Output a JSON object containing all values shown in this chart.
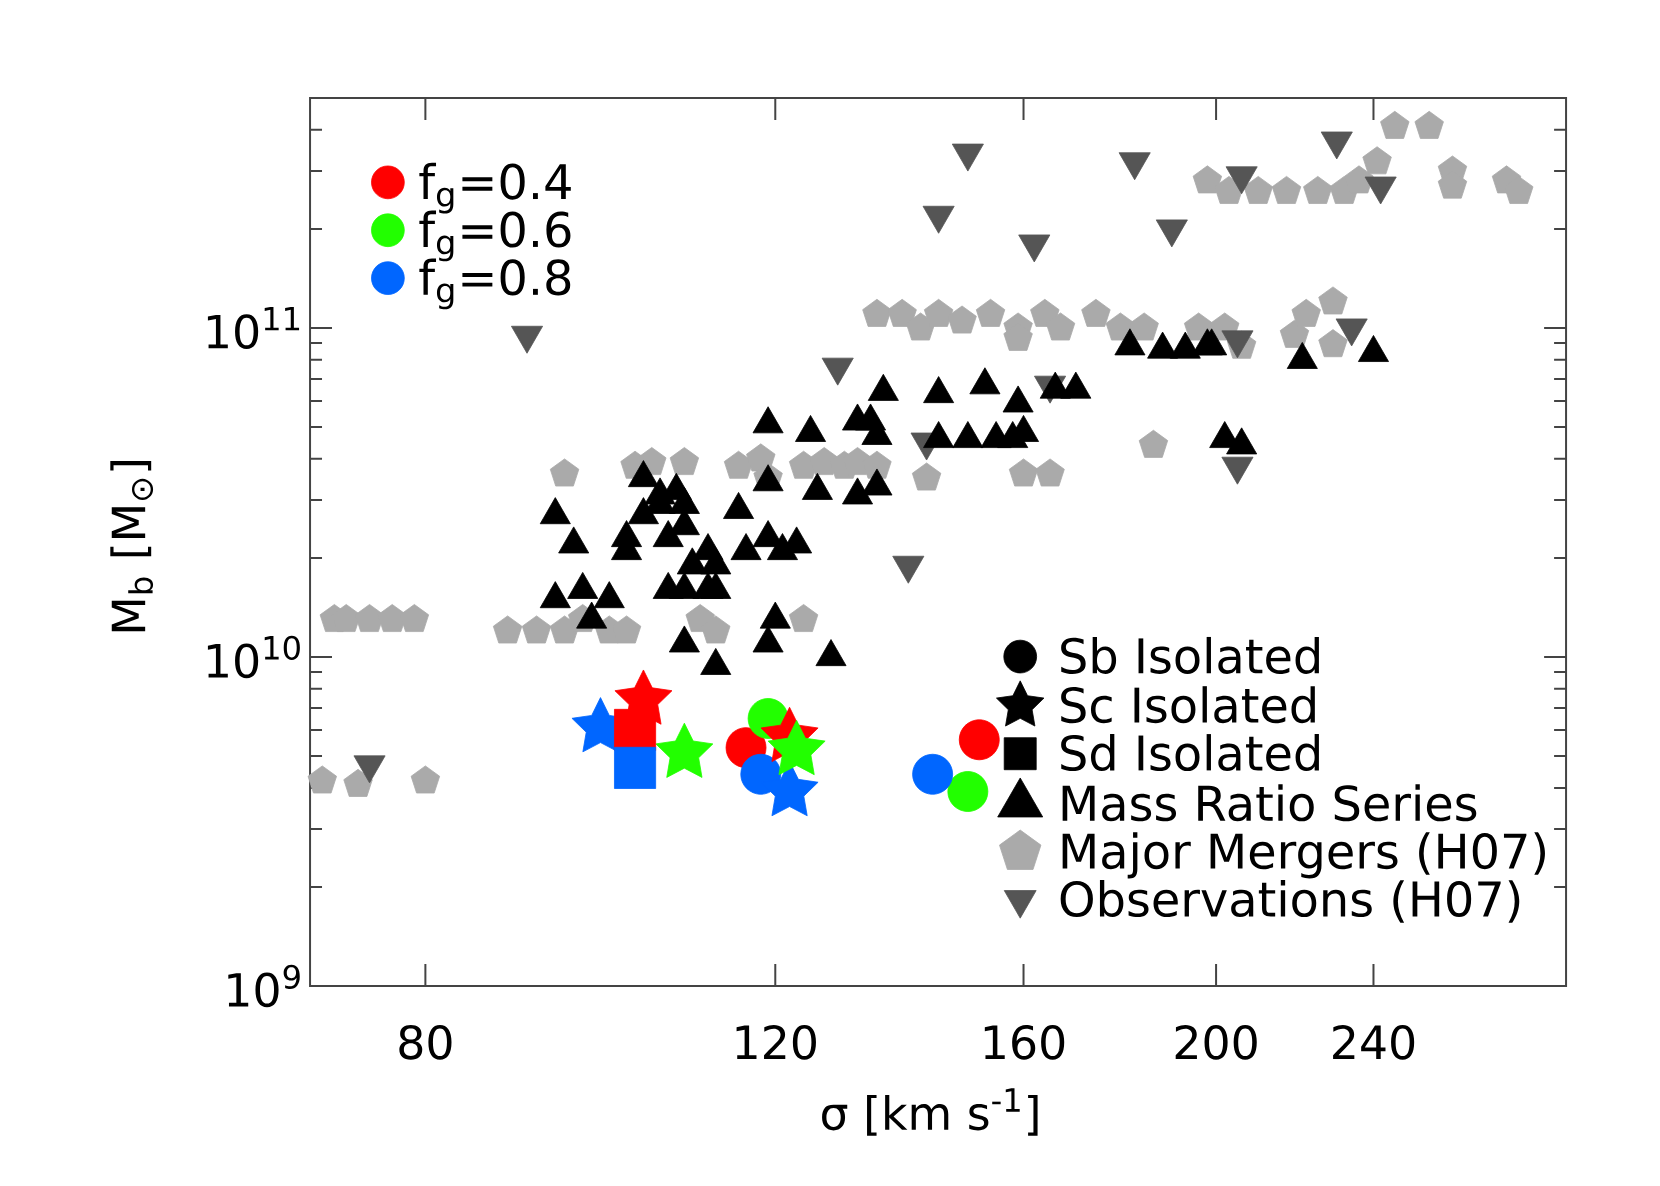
{
  "chart_data": {
    "type": "scatter",
    "xlabel": "σ [km s$^{-1}$]",
    "ylabel": "M$_{b}$ [M$_{⊙}$]",
    "log": "xy",
    "xlim": [
      70,
      300
    ],
    "ylim": [
      1000000000.0,
      500000000000.0
    ],
    "xticks": [
      80,
      120,
      160,
      200,
      240
    ],
    "yticks": [
      {
        "value": 1000000000.0,
        "label": "10$^{9}$"
      },
      {
        "value": 2000000000.0,
        "label": null
      },
      {
        "value": 3000000000.0,
        "label": null
      },
      {
        "value": 4000000000.0,
        "label": null
      },
      {
        "value": 5000000000.0,
        "label": null
      },
      {
        "value": 6000000000.0,
        "label": null
      },
      {
        "value": 7000000000.0,
        "label": null
      },
      {
        "value": 8000000000.0,
        "label": null
      },
      {
        "value": 9000000000.0,
        "label": null
      },
      {
        "value": 10000000000.0,
        "label": "10$^{10}$"
      },
      {
        "value": 20000000000.0,
        "label": null
      },
      {
        "value": 30000000000.0,
        "label": null
      },
      {
        "value": 40000000000.0,
        "label": null
      },
      {
        "value": 50000000000.0,
        "label": null
      },
      {
        "value": 60000000000.0,
        "label": null
      },
      {
        "value": 70000000000.0,
        "label": null
      },
      {
        "value": 80000000000.0,
        "label": null
      },
      {
        "value": 90000000000.0,
        "label": null
      },
      {
        "value": 100000000000.0,
        "label": "10$^{11}$"
      },
      {
        "value": 200000000000.0,
        "label": null
      },
      {
        "value": 300000000000.0,
        "label": null
      },
      {
        "value": 400000000000.0,
        "label": null
      }
    ],
    "legend": "bottom right",
    "series": [
      {
        "name": "f$_{g}$=0.4",
        "color": "#ff0000",
        "marker": "circle"
      },
      {
        "name": "f$_{g}$=0.6",
        "color": "#22ff00",
        "marker": "circle"
      },
      {
        "name": "f$_{g}$=0.8",
        "color": "#0066ff",
        "marker": "circle"
      },
      {
        "name": "Sb Isolated",
        "color": "#000000",
        "marker": "circle"
      },
      {
        "name": "Sc Isolated",
        "color": "#000000",
        "marker": "star"
      },
      {
        "name": "Sd Isolated",
        "color": "#000000",
        "marker": "square"
      },
      {
        "color": "#ff0000",
        "marker": "circle",
        "x": [
          116,
          152
        ],
        "values": [
          5300000000.0,
          5600000000.0
        ]
      },
      {
        "color": "#22ff00",
        "marker": "circle",
        "x": [
          119,
          150
        ],
        "values": [
          6500000000.0,
          3900000000.0
        ]
      },
      {
        "color": "#0066ff",
        "marker": "circle",
        "x": [
          118,
          144
        ],
        "values": [
          4400000000.0,
          4400000000.0
        ]
      },
      {
        "color": "#0066ff",
        "marker": "star",
        "x": [
          98,
          122
        ],
        "values": [
          6100000000.0,
          3900000000.0
        ]
      },
      {
        "color": "#ff0000",
        "marker": "star",
        "x": [
          103,
          122
        ],
        "values": [
          7400000000.0,
          5700000000.0
        ]
      },
      {
        "color": "#22ff00",
        "marker": "star",
        "x": [
          108,
          123
        ],
        "values": [
          5100000000.0,
          5200000000.0
        ]
      },
      {
        "color": "#ff0000",
        "marker": "square",
        "x": [
          102
        ],
        "values": [
          6000000000.0
        ]
      },
      {
        "color": "#0066ff",
        "marker": "square",
        "x": [
          102
        ],
        "values": [
          4600000000.0
        ]
      },
      {
        "name": "Mass Ratio Series",
        "color": "#000000",
        "marker": "triangle",
        "x": [
          136,
          145,
          119,
          125,
          132,
          134,
          135,
          103,
          105,
          107,
          119,
          126,
          132,
          135,
          115,
          93,
          103,
          153,
          159,
          166,
          170,
          145,
          150,
          155,
          158,
          160,
          181,
          188,
          193,
          198,
          199,
          221,
          240,
          202,
          206,
          95,
          101,
          101,
          105,
          108,
          106,
          108,
          109,
          111,
          112,
          116,
          119,
          121,
          123,
          93,
          96,
          97,
          99,
          106,
          108,
          111,
          112,
          108,
          112,
          120,
          119,
          128
        ],
        "values": [
          64000000000.0,
          63000000000.0,
          51000000000.0,
          48000000000.0,
          52000000000.0,
          52000000000.0,
          47000000000.0,
          35000000000.0,
          31000000000.0,
          32000000000.0,
          34000000000.0,
          32000000000.0,
          31000000000.0,
          33000000000.0,
          28000000000.0,
          27000000000.0,
          27000000000.0,
          67000000000.0,
          59000000000.0,
          65000000000.0,
          65000000000.0,
          46000000000.0,
          46000000000.0,
          46000000000.0,
          46000000000.0,
          48000000000.0,
          88000000000.0,
          86000000000.0,
          86000000000.0,
          88000000000.0,
          88000000000.0,
          80000000000.0,
          84000000000.0,
          46000000000.0,
          44000000000.0,
          22000000000.0,
          23000000000.0,
          21000000000.0,
          29000000000.0,
          29000000000.0,
          23000000000.0,
          25000000000.0,
          19000000000.0,
          21000000000.0,
          19000000000.0,
          21000000000.0,
          23000000000.0,
          21000000000.0,
          22000000000.0,
          15000000000.0,
          16000000000.0,
          13000000000.0,
          15000000000.0,
          16000000000.0,
          16000000000.0,
          16000000000.0,
          16000000000.0,
          11000000000.0,
          9400000000.0,
          13000000000.0,
          11000000000.0,
          10000000000.0
        ]
      },
      {
        "name": "Major Mergers (H07)",
        "color": "#aaaaaa",
        "x": [
          198,
          203,
          210,
          217,
          225,
          232,
          236,
          241,
          246,
          256,
          263,
          263,
          280,
          284,
          135,
          139,
          142,
          145,
          149,
          154,
          159,
          159,
          164,
          167,
          174,
          179,
          184,
          196,
          202,
          206,
          219,
          222,
          229,
          229,
          94,
          102,
          104,
          108,
          115,
          118,
          119,
          124,
          127,
          130,
          132,
          135,
          143,
          160,
          165,
          186,
          72,
          73,
          75,
          77,
          79,
          88,
          91,
          94,
          96,
          99,
          101,
          110,
          112,
          124,
          71,
          74,
          80
        ],
        "values": [
          280000000000.0,
          260000000000.0,
          260000000000.0,
          260000000000.0,
          260000000000.0,
          260000000000.0,
          280000000000.0,
          320000000000.0,
          410000000000.0,
          410000000000.0,
          300000000000.0,
          270000000000.0,
          280000000000.0,
          260000000000.0,
          110000000000.0,
          110000000000.0,
          100000000000.0,
          110000000000.0,
          105000000000.0,
          110000000000.0,
          100000000000.0,
          93000000000.0,
          110000000000.0,
          100000000000.0,
          110000000000.0,
          100000000000.0,
          100000000000.0,
          100000000000.0,
          100000000000.0,
          88000000000.0,
          95000000000.0,
          110000000000.0,
          120000000000.0,
          89000000000.0,
          36000000000.0,
          38000000000.0,
          39000000000.0,
          39000000000.0,
          38000000000.0,
          40000000000.0,
          35000000000.0,
          38000000000.0,
          39000000000.0,
          38000000000.0,
          39000000000.0,
          38000000000.0,
          35000000000.0,
          36000000000.0,
          36000000000.0,
          44000000000.0,
          13000000000.0,
          13000000000.0,
          13000000000.0,
          13000000000.0,
          13000000000.0,
          12000000000.0,
          12000000000.0,
          12000000000.0,
          13000000000.0,
          12000000000.0,
          12000000000.0,
          13000000000.0,
          12000000000.0,
          13000000000.0,
          4200000000.0,
          4100000000.0,
          4200000000.0
        ]
      },
      {
        "name": "Observations (H07)",
        "color": "#555555",
        "marker": "triangle-down",
        "x": [
          90,
          129,
          143,
          150,
          145,
          162,
          182,
          190,
          206,
          230,
          242,
          205,
          234,
          165,
          205,
          140,
          75
        ],
        "values": [
          95000000000.0,
          76000000000.0,
          45000000000.0,
          340000000000.0,
          220000000000.0,
          180000000000.0,
          320000000000.0,
          200000000000.0,
          290000000000.0,
          370000000000.0,
          270000000000.0,
          92000000000.0,
          100000000000.0,
          67000000000.0,
          38000000000.0,
          19000000000.0,
          4700000000.0
        ]
      }
    ]
  }
}
